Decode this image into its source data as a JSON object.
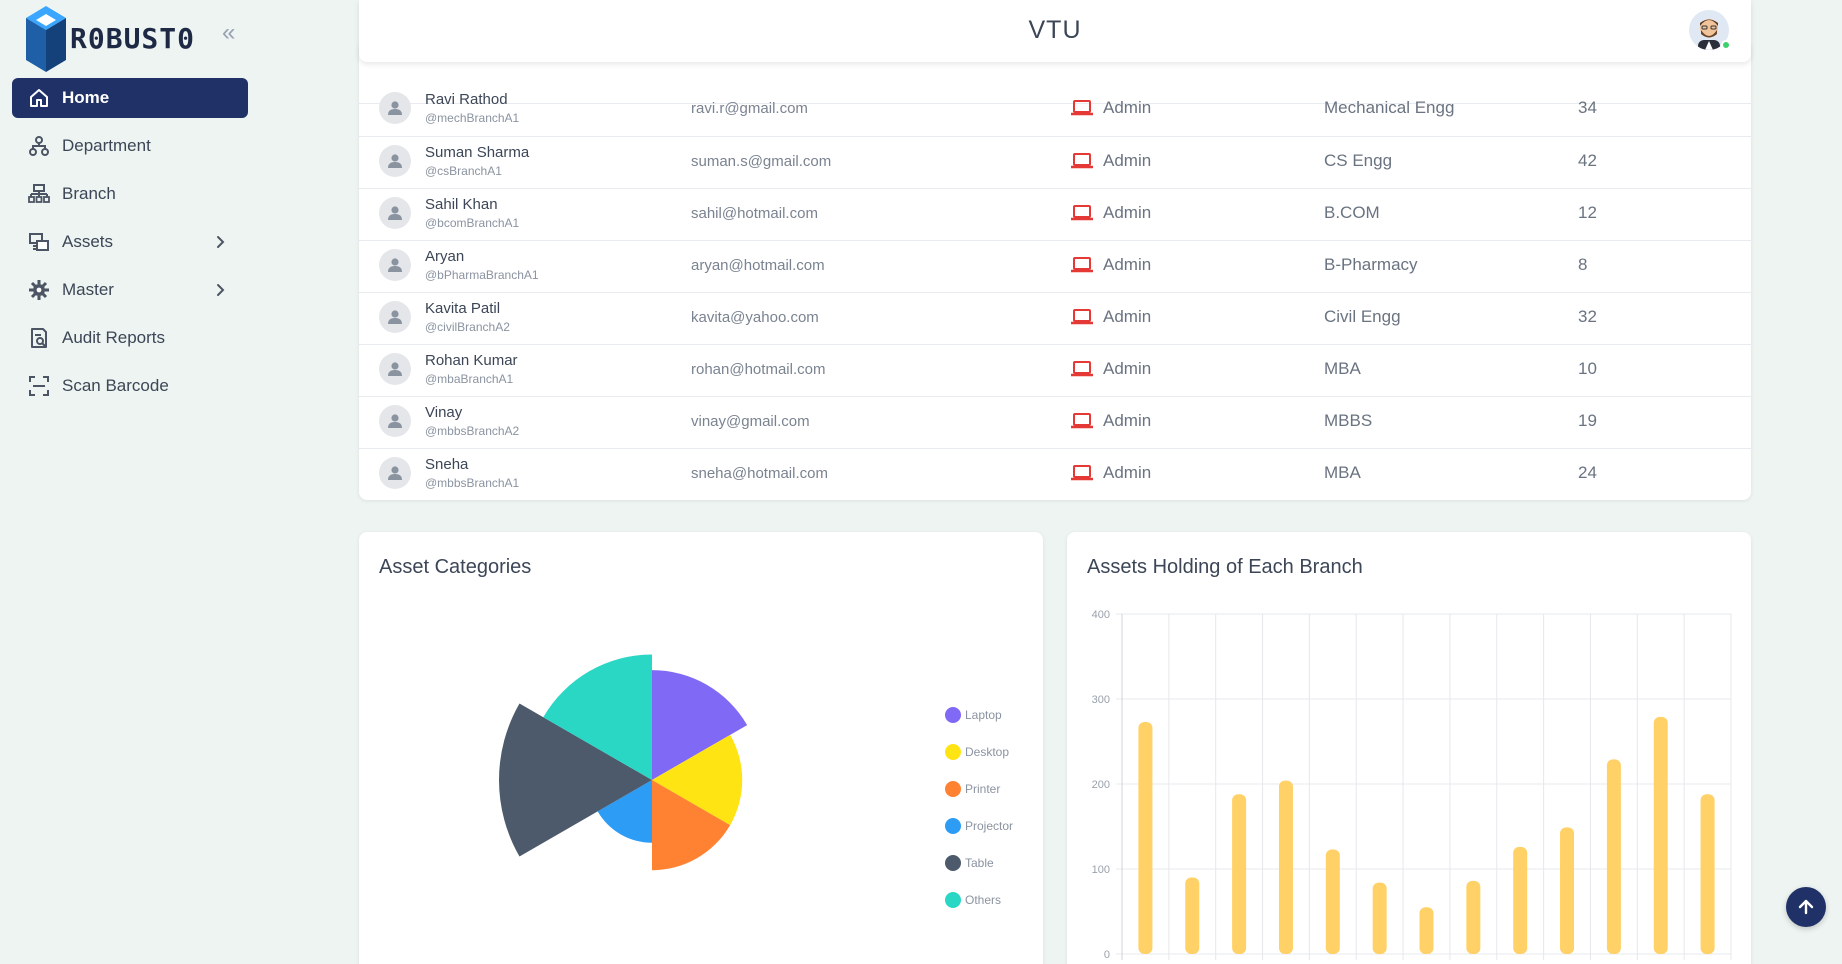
{
  "brand": {
    "name": "R0BUST0"
  },
  "sidebar": {
    "collapse_label": "«",
    "items": [
      {
        "label": "Home",
        "icon": "home-icon",
        "active": true,
        "has_submenu": false
      },
      {
        "label": "Department",
        "icon": "department-icon",
        "active": false,
        "has_submenu": false
      },
      {
        "label": "Branch",
        "icon": "branch-icon",
        "active": false,
        "has_submenu": false
      },
      {
        "label": "Assets",
        "icon": "assets-icon",
        "active": false,
        "has_submenu": true
      },
      {
        "label": "Master",
        "icon": "gear-icon",
        "active": false,
        "has_submenu": true
      },
      {
        "label": "Audit Reports",
        "icon": "report-icon",
        "active": false,
        "has_submenu": false
      },
      {
        "label": "Scan Barcode",
        "icon": "scan-icon",
        "active": false,
        "has_submenu": false
      }
    ]
  },
  "header": {
    "title": "VTU"
  },
  "users_table": {
    "rows": [
      {
        "name": "Ravi Rathod",
        "handle": "@mechBranchA1",
        "email": "ravi.r@gmail.com",
        "role": "Admin",
        "department": "Mechanical Engg",
        "count": "34"
      },
      {
        "name": "Suman Sharma",
        "handle": "@csBranchA1",
        "email": "suman.s@gmail.com",
        "role": "Admin",
        "department": "CS Engg",
        "count": "42"
      },
      {
        "name": "Sahil Khan",
        "handle": "@bcomBranchA1",
        "email": "sahil@hotmail.com",
        "role": "Admin",
        "department": "B.COM",
        "count": "12"
      },
      {
        "name": "Aryan",
        "handle": "@bPharmaBranchA1",
        "email": "aryan@hotmail.com",
        "role": "Admin",
        "department": "B-Pharmacy",
        "count": "8"
      },
      {
        "name": "Kavita Patil",
        "handle": "@civilBranchA2",
        "email": "kavita@yahoo.com",
        "role": "Admin",
        "department": "Civil Engg",
        "count": "32"
      },
      {
        "name": "Rohan Kumar",
        "handle": "@mbaBranchA1",
        "email": "rohan@hotmail.com",
        "role": "Admin",
        "department": "MBA",
        "count": "10"
      },
      {
        "name": "Vinay",
        "handle": "@mbbsBranchA2",
        "email": "vinay@gmail.com",
        "role": "Admin",
        "department": "MBBS",
        "count": "19"
      },
      {
        "name": "Sneha",
        "handle": "@mbbsBranchA1",
        "email": "sneha@hotmail.com",
        "role": "Admin",
        "department": "MBA",
        "count": "24"
      }
    ]
  },
  "colors": {
    "primary": "#1f3166",
    "laptop_icon": "#e53935",
    "bar": "#ffd166"
  },
  "chart_data": [
    {
      "type": "pie",
      "variant": "polar-area",
      "title": "Asset Categories",
      "legend_position": "right",
      "categories": [
        "Laptop",
        "Desktop",
        "Printer",
        "Projector",
        "Table",
        "Others"
      ],
      "values": [
        112,
        92,
        92,
        64,
        156,
        128
      ],
      "colors": [
        "#8069f5",
        "#ffe414",
        "#ff8233",
        "#2d9cf5",
        "#4d5a6b",
        "#2ad6c4"
      ]
    },
    {
      "type": "bar",
      "title": "Assets Holding of Each Branch",
      "ylim": [
        0,
        400
      ],
      "yticks": [
        "0",
        "100",
        "200",
        "300",
        "400"
      ],
      "grid": true,
      "values": [
        273,
        90,
        188,
        204,
        123,
        84,
        55,
        86,
        126,
        149,
        229,
        279,
        188
      ]
    }
  ]
}
